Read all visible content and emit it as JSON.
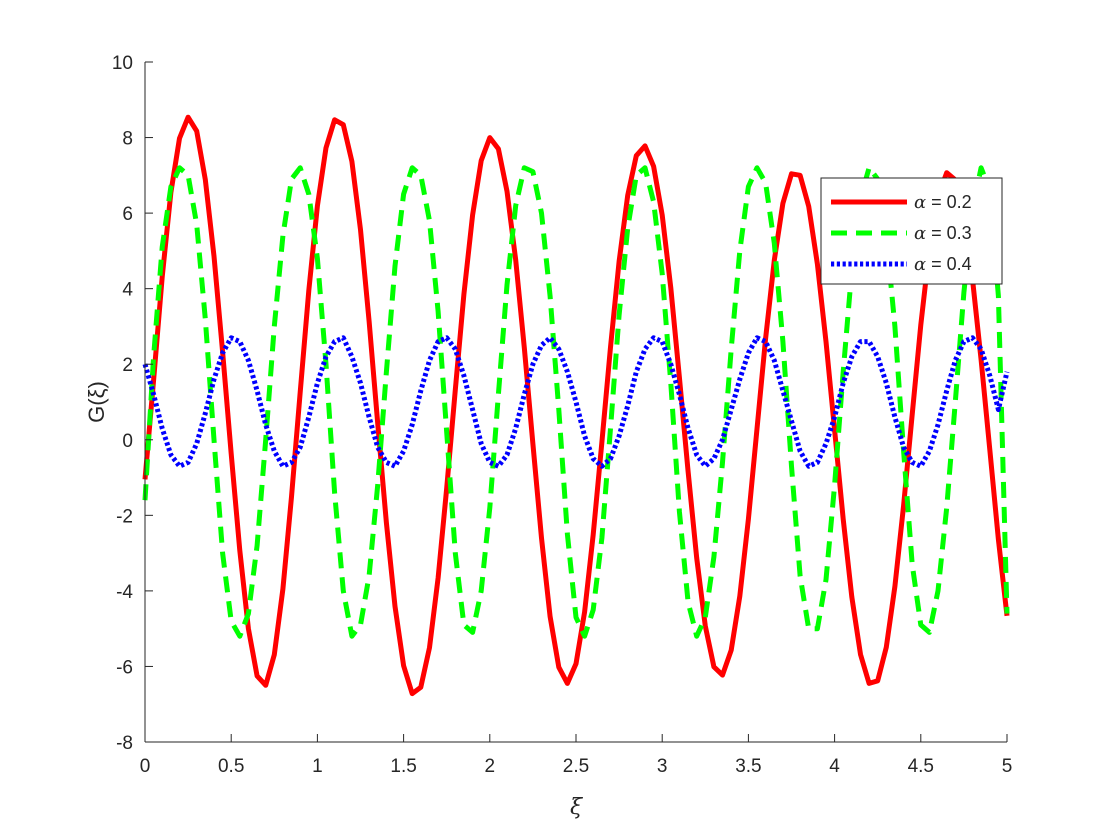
{
  "chart_data": {
    "type": "line",
    "xlabel": "ξ",
    "ylabel": "G(ξ)",
    "xlim": [
      0,
      5
    ],
    "ylim": [
      -8,
      10
    ],
    "xticks": [
      "0",
      "0.5",
      "1",
      "1.5",
      "2",
      "2.5",
      "3",
      "3.5",
      "4",
      "4.5",
      "5"
    ],
    "yticks": [
      "-8",
      "-6",
      "-4",
      "-2",
      "0",
      "2",
      "4",
      "6",
      "8",
      "10"
    ],
    "grid": false,
    "legend_position": "top-right",
    "series": [
      {
        "name": "α = 0.2",
        "name_symbol": "α",
        "name_value": " = 0.2",
        "color": "#ff0000",
        "style": "solid",
        "x": [
          0,
          0.05,
          0.1,
          0.15,
          0.2,
          0.25,
          0.3,
          0.35,
          0.4,
          0.45,
          0.5,
          0.55,
          0.6,
          0.65,
          0.7,
          0.75,
          0.8,
          0.85,
          0.9,
          0.95,
          1.0,
          1.05,
          1.1,
          1.15,
          1.2,
          1.25,
          1.3,
          1.35,
          1.4,
          1.45,
          1.5,
          1.55,
          1.6,
          1.65,
          1.7,
          1.75,
          1.8,
          1.85,
          1.9,
          1.95,
          2.0,
          2.05,
          2.1,
          2.15,
          2.2,
          2.25,
          2.3,
          2.35,
          2.4,
          2.45,
          2.5,
          2.55,
          2.6,
          2.65,
          2.7,
          2.75,
          2.8,
          2.85,
          2.9,
          2.95,
          3.0,
          3.05,
          3.1,
          3.15,
          3.2,
          3.25,
          3.3,
          3.35,
          3.4,
          3.45,
          3.5,
          3.55,
          3.6,
          3.65,
          3.7,
          3.75,
          3.8,
          3.85,
          3.9,
          3.95,
          4.0,
          4.05,
          4.1,
          4.15,
          4.2,
          4.25,
          4.3,
          4.35,
          4.4,
          4.45,
          4.5,
          4.55,
          4.6,
          4.65,
          4.7,
          4.75,
          4.8,
          4.85,
          4.9,
          4.95,
          5.0
        ],
        "y": [
          -1.05,
          1.58,
          4.31,
          6.55,
          7.98,
          8.54,
          8.17,
          6.89,
          4.86,
          2.33,
          -0.37,
          -2.93,
          -5.0,
          -6.25,
          -6.5,
          -5.69,
          -3.95,
          -1.51,
          1.26,
          3.95,
          6.19,
          7.73,
          8.47,
          8.34,
          7.37,
          5.56,
          3.14,
          0.44,
          -2.2,
          -4.41,
          -5.98,
          -6.72,
          -6.55,
          -5.5,
          -3.66,
          -1.28,
          1.32,
          3.85,
          5.95,
          7.39,
          8.0,
          7.7,
          6.58,
          4.76,
          2.44,
          -0.11,
          -2.6,
          -4.68,
          -6.02,
          -6.45,
          -5.93,
          -4.56,
          -2.51,
          -0.06,
          2.45,
          4.72,
          6.47,
          7.52,
          7.78,
          7.24,
          5.95,
          4.02,
          1.65,
          -0.84,
          -3.13,
          -4.93,
          -6.01,
          -6.23,
          -5.57,
          -4.14,
          -2.1,
          0.29,
          2.68,
          4.75,
          6.26,
          7.04,
          7.0,
          6.18,
          4.65,
          2.6,
          0.26,
          -2.1,
          -4.16,
          -5.68,
          -6.45,
          -6.38,
          -5.49,
          -3.88,
          -1.74,
          0.67,
          3.04,
          5.04,
          6.44,
          7.07,
          6.88,
          5.9,
          4.25,
          2.12,
          -0.26,
          -2.64,
          -4.66
        ]
      },
      {
        "name": "α = 0.3",
        "name_symbol": "α",
        "name_value": " = 0.3",
        "color": "#00ff00",
        "style": "dashed",
        "x": [
          0,
          0.05,
          0.1,
          0.15,
          0.2,
          0.25,
          0.3,
          0.35,
          0.4,
          0.45,
          0.5,
          0.55,
          0.6,
          0.65,
          0.7,
          0.75,
          0.8,
          0.85,
          0.9,
          0.95,
          1.0,
          1.05,
          1.1,
          1.15,
          1.2,
          1.25,
          1.3,
          1.35,
          1.4,
          1.45,
          1.5,
          1.55,
          1.6,
          1.65,
          1.7,
          1.75,
          1.8,
          1.85,
          1.9,
          1.95,
          2.0,
          2.05,
          2.1,
          2.15,
          2.2,
          2.25,
          2.3,
          2.35,
          2.4,
          2.45,
          2.5,
          2.55,
          2.6,
          2.65,
          2.7,
          2.75,
          2.8,
          2.85,
          2.9,
          2.95,
          3.0,
          3.05,
          3.1,
          3.15,
          3.2,
          3.25,
          3.3,
          3.35,
          3.4,
          3.45,
          3.5,
          3.55,
          3.6,
          3.65,
          3.7,
          3.75,
          3.8,
          3.85,
          3.9,
          3.95,
          4.0,
          4.05,
          4.1,
          4.15,
          4.2,
          4.25,
          4.3,
          4.35,
          4.4,
          4.45,
          4.5,
          4.55,
          4.6,
          4.65,
          4.7,
          4.75,
          4.8,
          4.85,
          4.9,
          4.95,
          5.0
        ],
        "y": [
          -1.6,
          2.2,
          5.1,
          6.7,
          7.2,
          7.0,
          5.7,
          3.2,
          0.0,
          -3.0,
          -4.8,
          -5.2,
          -4.6,
          -2.8,
          0.0,
          3.0,
          5.4,
          6.9,
          7.2,
          6.5,
          4.8,
          2.0,
          -1.4,
          -4.0,
          -5.2,
          -4.9,
          -3.6,
          -1.2,
          1.8,
          4.6,
          6.5,
          7.2,
          7.0,
          5.8,
          3.4,
          0.2,
          -3.0,
          -4.9,
          -5.1,
          -4.0,
          -1.8,
          1.2,
          4.1,
          6.2,
          7.2,
          7.1,
          6.0,
          3.8,
          0.8,
          -2.5,
          -4.7,
          -5.2,
          -4.5,
          -2.6,
          0.3,
          3.3,
          5.6,
          7.0,
          7.2,
          6.3,
          4.4,
          1.5,
          -1.9,
          -4.3,
          -5.2,
          -4.7,
          -3.1,
          -0.6,
          2.4,
          5.0,
          6.7,
          7.2,
          6.8,
          5.2,
          2.6,
          -0.7,
          -3.6,
          -5.0,
          -5.0,
          -3.7,
          -1.2,
          1.8,
          4.5,
          6.4,
          7.2,
          6.9,
          5.4,
          3.0,
          -0.3,
          -3.3,
          -4.9,
          -5.1,
          -4.0,
          -1.8,
          1.0,
          3.9,
          6.1,
          7.2,
          6.6,
          3.8,
          -4.6
        ]
      },
      {
        "name": "α = 0.4",
        "name_symbol": "α",
        "name_value": " = 0.4",
        "color": "#0000ff",
        "style": "dotted",
        "x": [
          0,
          0.05,
          0.1,
          0.15,
          0.2,
          0.25,
          0.3,
          0.35,
          0.4,
          0.45,
          0.5,
          0.55,
          0.6,
          0.65,
          0.7,
          0.75,
          0.8,
          0.85,
          0.9,
          0.95,
          1.0,
          1.05,
          1.1,
          1.15,
          1.2,
          1.25,
          1.3,
          1.35,
          1.4,
          1.45,
          1.5,
          1.55,
          1.6,
          1.65,
          1.7,
          1.75,
          1.8,
          1.85,
          1.9,
          1.95,
          2.0,
          2.05,
          2.1,
          2.15,
          2.2,
          2.25,
          2.3,
          2.35,
          2.4,
          2.45,
          2.5,
          2.55,
          2.6,
          2.65,
          2.7,
          2.75,
          2.8,
          2.85,
          2.9,
          2.95,
          3.0,
          3.05,
          3.1,
          3.15,
          3.2,
          3.25,
          3.3,
          3.35,
          3.4,
          3.45,
          3.5,
          3.55,
          3.6,
          3.65,
          3.7,
          3.75,
          3.8,
          3.85,
          3.9,
          3.95,
          4.0,
          4.05,
          4.1,
          4.15,
          4.2,
          4.25,
          4.3,
          4.35,
          4.4,
          4.45,
          4.5,
          4.55,
          4.6,
          4.65,
          4.7,
          4.75,
          4.8,
          4.85,
          4.9,
          4.95,
          5.0
        ],
        "y": [
          2.0,
          1.2,
          0.3,
          -0.4,
          -0.7,
          -0.6,
          -0.1,
          0.7,
          1.6,
          2.3,
          2.7,
          2.6,
          2.1,
          1.3,
          0.4,
          -0.3,
          -0.7,
          -0.6,
          -0.2,
          0.6,
          1.5,
          2.2,
          2.6,
          2.7,
          2.2,
          1.5,
          0.6,
          -0.2,
          -0.6,
          -0.7,
          -0.3,
          0.4,
          1.3,
          2.1,
          2.6,
          2.7,
          2.4,
          1.7,
          0.8,
          -0.1,
          -0.6,
          -0.7,
          -0.4,
          0.3,
          1.2,
          2.0,
          2.5,
          2.7,
          2.4,
          1.8,
          1.0,
          0.1,
          -0.5,
          -0.7,
          -0.5,
          0.1,
          0.9,
          1.8,
          2.4,
          2.7,
          2.6,
          2.0,
          1.2,
          0.3,
          -0.4,
          -0.7,
          -0.5,
          0.0,
          0.8,
          1.6,
          2.3,
          2.7,
          2.6,
          2.1,
          1.3,
          0.5,
          -0.3,
          -0.7,
          -0.6,
          -0.1,
          0.6,
          1.5,
          2.2,
          2.6,
          2.6,
          2.2,
          1.5,
          0.6,
          -0.2,
          -0.6,
          -0.7,
          -0.3,
          0.4,
          1.3,
          2.1,
          2.6,
          2.7,
          2.4,
          1.7,
          0.8,
          1.8
        ]
      }
    ]
  }
}
